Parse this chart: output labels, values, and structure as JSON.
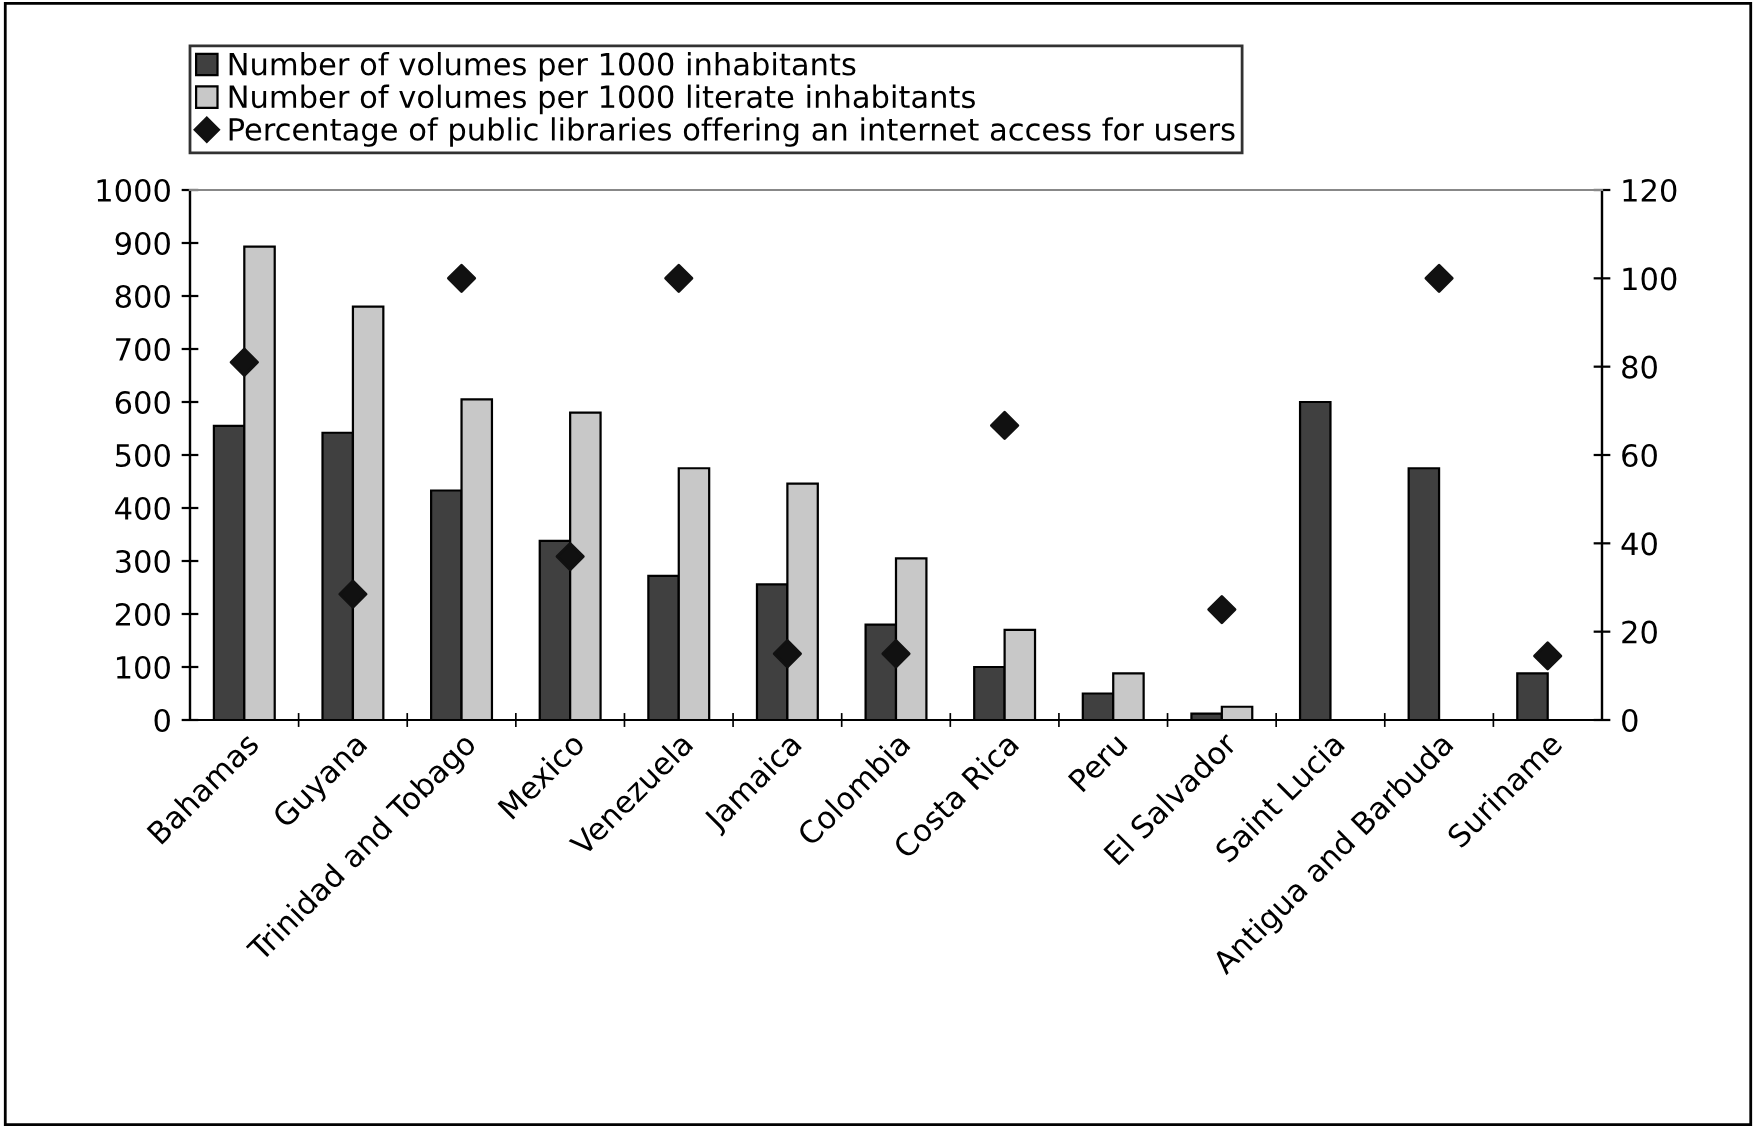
{
  "chart_data": {
    "type": "bar",
    "categories": [
      "Bahamas",
      "Guyana",
      "Trinidad and Tobago",
      "Mexico",
      "Venezuela",
      "Jamaica",
      "Colombia",
      "Costa Rica",
      "Peru",
      "El Salvador",
      "Saint Lucia",
      "Antigua and Barbuda",
      "Suriname"
    ],
    "series": [
      {
        "name": "Number of volumes per 1000 inhabitants",
        "color": "#404040",
        "values": [
          555,
          542,
          433,
          338,
          272,
          256,
          180,
          100,
          50,
          12,
          600,
          475,
          88
        ]
      },
      {
        "name": "Number of volumes per 1000 literate inhabitants",
        "color": "#c8c8c8",
        "values": [
          893,
          780,
          605,
          580,
          475,
          446,
          305,
          170,
          88,
          25,
          null,
          null,
          null
        ]
      },
      {
        "name": "Percentage of public libraries offering an internet access for users",
        "type": "scatter",
        "axis": "y2",
        "color": "#111111",
        "marker": "diamond",
        "values": [
          81,
          28.5,
          100,
          37,
          100,
          15,
          15,
          66.7,
          null,
          25,
          null,
          100,
          14.5
        ]
      }
    ],
    "ylim": [
      0,
      1000
    ],
    "yticks": [
      0,
      100,
      200,
      300,
      400,
      500,
      600,
      700,
      800,
      900,
      1000
    ],
    "y2lim": [
      0,
      120
    ],
    "y2ticks": [
      0,
      20,
      40,
      60,
      80,
      100,
      120
    ],
    "grid": false,
    "legend": "top left"
  }
}
